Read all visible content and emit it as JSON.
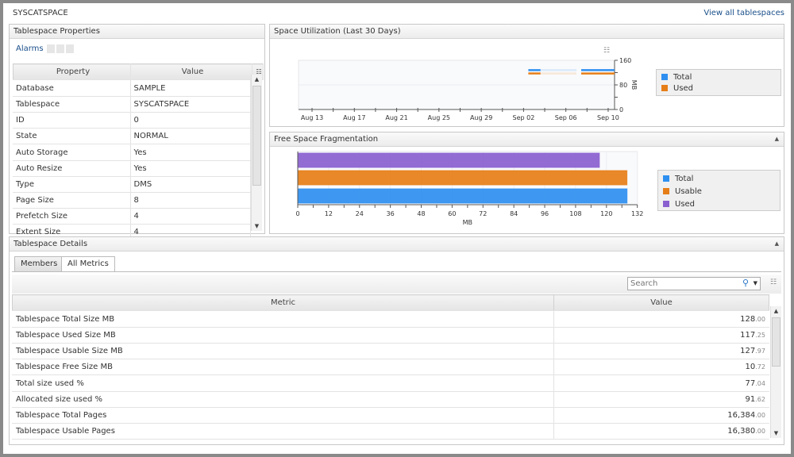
{
  "header": {
    "title": "SYSCATSPACE",
    "view_all_link": "View all tablespaces"
  },
  "properties": {
    "title": "Tablespace Properties",
    "alarms_label": "Alarms",
    "columns": [
      "Property",
      "Value"
    ],
    "rows": [
      {
        "property": "Database",
        "value": "SAMPLE"
      },
      {
        "property": "Tablespace",
        "value": "SYSCATSPACE"
      },
      {
        "property": "ID",
        "value": "0"
      },
      {
        "property": "State",
        "value": "NORMAL"
      },
      {
        "property": "Auto Storage",
        "value": "Yes"
      },
      {
        "property": "Auto Resize",
        "value": "Yes"
      },
      {
        "property": "Type",
        "value": "DMS"
      },
      {
        "property": "Page Size",
        "value": "8"
      },
      {
        "property": "Prefetch Size",
        "value": "4"
      },
      {
        "property": "Extent Size",
        "value": "4"
      }
    ]
  },
  "colors": {
    "total": "#2e8ff0",
    "used": "#e67e17",
    "usable": "#e67e17",
    "used_frag": "#8a5fcf"
  },
  "chart_data": [
    {
      "type": "line",
      "title": "Space Utilization (Last 30 Days)",
      "ylabel": "MB",
      "ylim": [
        0,
        160
      ],
      "yticks": [
        "0",
        "80",
        "160"
      ],
      "xticks": [
        "Aug 13",
        "Aug 17",
        "Aug 21",
        "Aug 25",
        "Aug 29",
        "Sep 02",
        "Sep 06",
        "Sep 10"
      ],
      "legend_position": "right",
      "series": [
        {
          "name": "Total",
          "segments": [
            {
              "from": "Sep 02",
              "to": "Sep 03",
              "value": 128
            },
            {
              "from": "Sep 07",
              "to": "Sep 10",
              "value": 128
            }
          ]
        },
        {
          "name": "Used",
          "segments": [
            {
              "from": "Sep 02",
              "to": "Sep 03",
              "value": 117.25
            },
            {
              "from": "Sep 07",
              "to": "Sep 10",
              "value": 117.25
            }
          ]
        }
      ]
    },
    {
      "type": "bar",
      "orientation": "horizontal",
      "title": "Free Space Fragmentation",
      "xlabel": "MB",
      "xlim": [
        0,
        132
      ],
      "xticks": [
        "0",
        "12",
        "24",
        "36",
        "48",
        "60",
        "72",
        "84",
        "96",
        "108",
        "120",
        "132"
      ],
      "legend_position": "right",
      "categories": [
        "Total",
        "Usable",
        "Used"
      ],
      "values": [
        128.0,
        127.97,
        117.25
      ]
    }
  ],
  "details": {
    "title": "Tablespace Details",
    "tabs": [
      "Members",
      "All Metrics"
    ],
    "search_placeholder": "Search",
    "columns": [
      "Metric",
      "Value"
    ],
    "rows": [
      {
        "metric": "Tablespace Total Size MB",
        "int": "128",
        "dec": ".00"
      },
      {
        "metric": "Tablespace Used Size MB",
        "int": "117",
        "dec": ".25"
      },
      {
        "metric": "Tablespace Usable Size MB",
        "int": "127",
        "dec": ".97"
      },
      {
        "metric": "Tablespace Free Size MB",
        "int": "10",
        "dec": ".72"
      },
      {
        "metric": "Total size used %",
        "int": "77",
        "dec": ".04"
      },
      {
        "metric": "Allocated size used %",
        "int": "91",
        "dec": ".62"
      },
      {
        "metric": "Tablespace Total Pages",
        "int": "16,384",
        "dec": ".00"
      },
      {
        "metric": "Tablespace Usable Pages",
        "int": "16,380",
        "dec": ".00"
      }
    ]
  }
}
